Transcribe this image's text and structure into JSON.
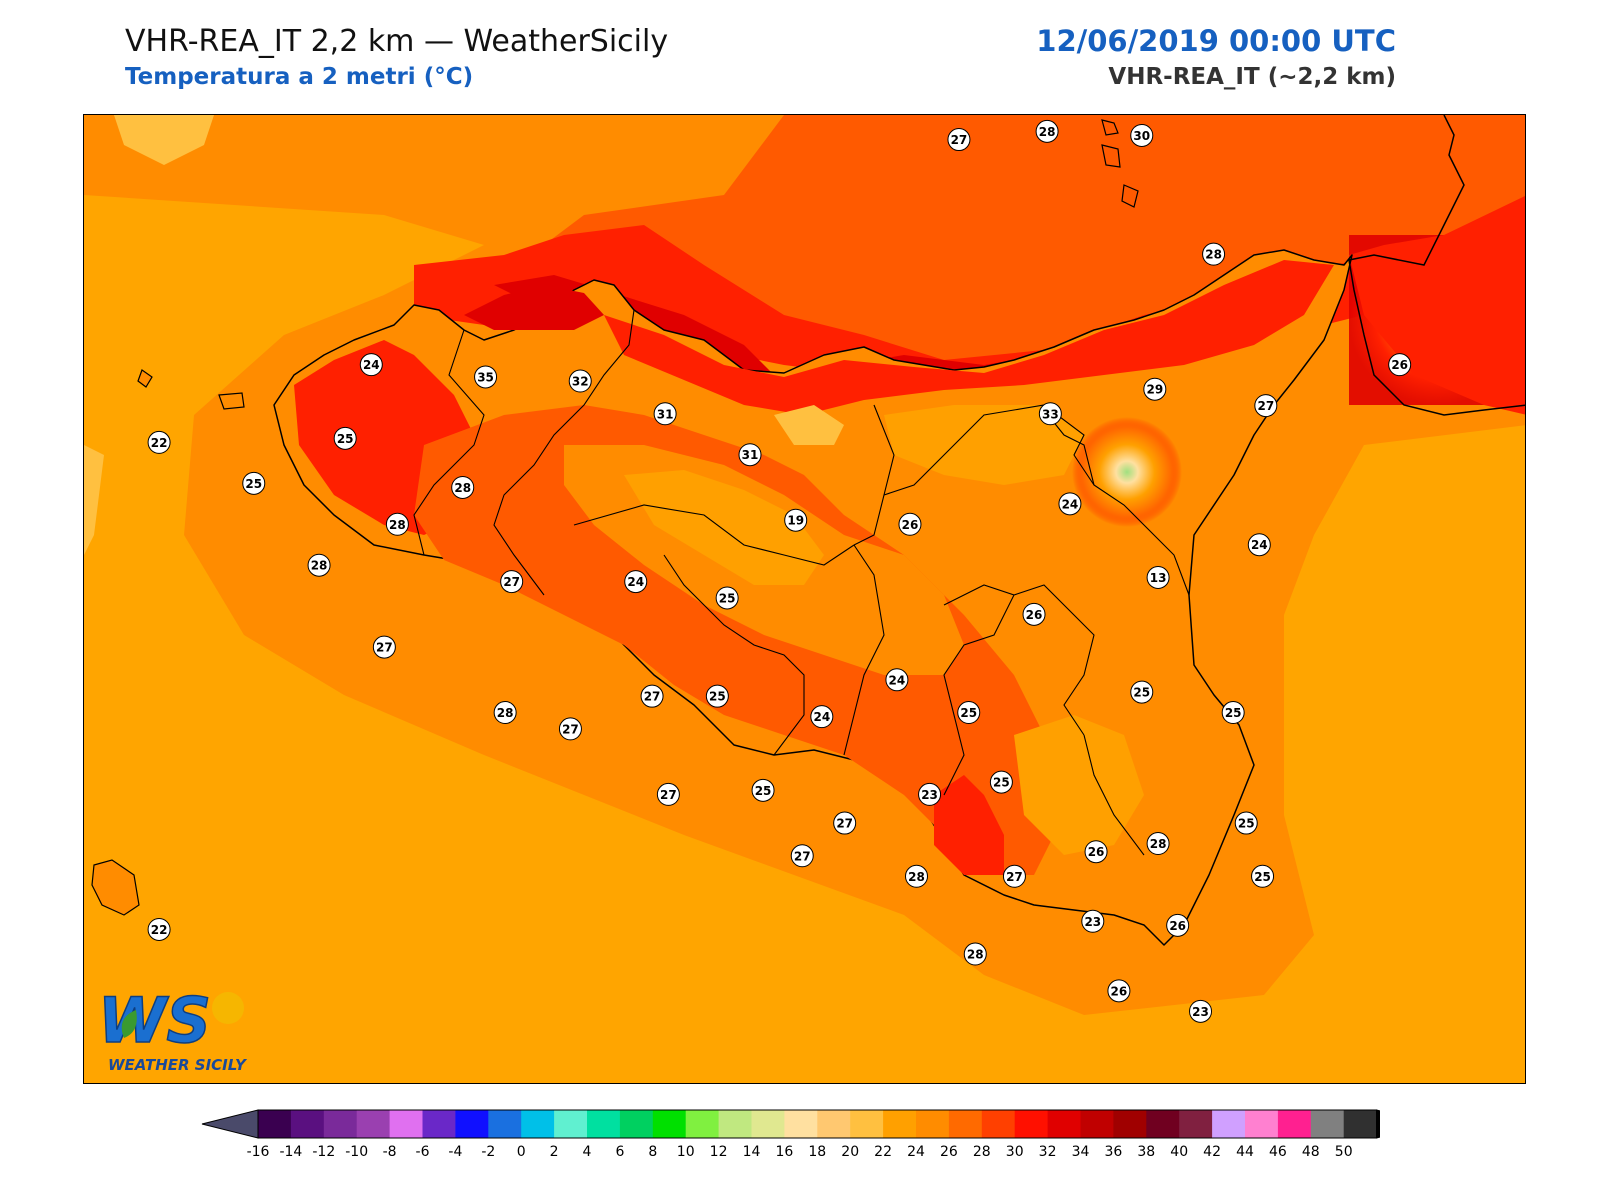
{
  "header": {
    "title": "VHR-REA_IT 2,2 km — WeatherSicily",
    "subtitle": "Temperatura a 2 metri (°C)",
    "datetime": "12/06/2019 00:00 UTC",
    "model": "VHR-REA_IT (~2,2 km)"
  },
  "logo": {
    "text": "WEATHER SICILY",
    "mark": "WS"
  },
  "colors": {
    "sea_base": "#ffa500",
    "land_base": "#ff8a00",
    "hot": "#ff5a00",
    "very_hot": "#ff2000",
    "extreme": "#e00000",
    "cool": "#ffc840",
    "border": "#000000",
    "label_fill": "#ffffff"
  },
  "colorbar": {
    "ticks": [
      "-16",
      "-14",
      "-12",
      "-10",
      "-8",
      "-6",
      "-4",
      "-2",
      "0",
      "2",
      "4",
      "6",
      "8",
      "10",
      "12",
      "14",
      "16",
      "18",
      "20",
      "22",
      "24",
      "26",
      "28",
      "30",
      "32",
      "34",
      "36",
      "38",
      "40",
      "42",
      "44",
      "46",
      "48",
      "50"
    ],
    "colors": [
      "#3a0050",
      "#5a1080",
      "#7a2a9a",
      "#9a40b0",
      "#e070f0",
      "#6a28c8",
      "#1010ff",
      "#1a70e0",
      "#00c0e8",
      "#60f0d0",
      "#00e0a0",
      "#00d060",
      "#00e000",
      "#80f040",
      "#c0e880",
      "#e0e890",
      "#ffe0a0",
      "#ffc870",
      "#ffc040",
      "#ffa000",
      "#ff8c00",
      "#ff6a00",
      "#ff4000",
      "#ff1000",
      "#e00000",
      "#c00000",
      "#a00000",
      "#700020",
      "#802040",
      "#d0a0ff",
      "#ff80d0",
      "#ff2090",
      "#808080",
      "#303030"
    ]
  },
  "stations": [
    {
      "v": "27",
      "lon": 14.38,
      "lat": 38.68
    },
    {
      "v": "28",
      "lon": 14.65,
      "lat": 38.7
    },
    {
      "v": "30",
      "lon": 14.94,
      "lat": 38.69
    },
    {
      "v": "28",
      "lon": 15.16,
      "lat": 38.4
    },
    {
      "v": "24",
      "lon": 12.58,
      "lat": 38.13
    },
    {
      "v": "35",
      "lon": 12.93,
      "lat": 38.1
    },
    {
      "v": "32",
      "lon": 13.22,
      "lat": 38.09
    },
    {
      "v": "31",
      "lon": 13.48,
      "lat": 38.01
    },
    {
      "v": "31",
      "lon": 13.74,
      "lat": 37.91
    },
    {
      "v": "33",
      "lon": 14.66,
      "lat": 38.01
    },
    {
      "v": "29",
      "lon": 14.98,
      "lat": 38.07
    },
    {
      "v": "27",
      "lon": 15.32,
      "lat": 38.03
    },
    {
      "v": "26",
      "lon": 15.73,
      "lat": 38.13
    },
    {
      "v": "22",
      "lon": 11.93,
      "lat": 37.94
    },
    {
      "v": "25",
      "lon": 12.22,
      "lat": 37.84
    },
    {
      "v": "25",
      "lon": 12.5,
      "lat": 37.95
    },
    {
      "v": "28",
      "lon": 12.86,
      "lat": 37.83
    },
    {
      "v": "28",
      "lon": 12.66,
      "lat": 37.74
    },
    {
      "v": "28",
      "lon": 12.42,
      "lat": 37.64
    },
    {
      "v": "27",
      "lon": 12.62,
      "lat": 37.44
    },
    {
      "v": "28",
      "lon": 12.99,
      "lat": 37.28
    },
    {
      "v": "27",
      "lon": 13.01,
      "lat": 37.6
    },
    {
      "v": "24",
      "lon": 13.39,
      "lat": 37.6
    },
    {
      "v": "25",
      "lon": 13.67,
      "lat": 37.56
    },
    {
      "v": "19",
      "lon": 13.88,
      "lat": 37.75
    },
    {
      "v": "26",
      "lon": 14.23,
      "lat": 37.74
    },
    {
      "v": "24",
      "lon": 14.72,
      "lat": 37.79
    },
    {
      "v": "13",
      "lon": 14.99,
      "lat": 37.61
    },
    {
      "v": "24",
      "lon": 15.3,
      "lat": 37.69
    },
    {
      "v": "26",
      "lon": 14.61,
      "lat": 37.52
    },
    {
      "v": "24",
      "lon": 14.19,
      "lat": 37.36
    },
    {
      "v": "25",
      "lon": 14.41,
      "lat": 37.28
    },
    {
      "v": "25",
      "lon": 14.94,
      "lat": 37.33
    },
    {
      "v": "25",
      "lon": 15.22,
      "lat": 37.28
    },
    {
      "v": "27",
      "lon": 13.44,
      "lat": 37.32
    },
    {
      "v": "25",
      "lon": 13.64,
      "lat": 37.32
    },
    {
      "v": "24",
      "lon": 13.96,
      "lat": 37.27
    },
    {
      "v": "27",
      "lon": 13.19,
      "lat": 37.24
    },
    {
      "v": "27",
      "lon": 13.49,
      "lat": 37.08
    },
    {
      "v": "25",
      "lon": 13.78,
      "lat": 37.09
    },
    {
      "v": "27",
      "lon": 14.03,
      "lat": 37.01
    },
    {
      "v": "23",
      "lon": 14.29,
      "lat": 37.08
    },
    {
      "v": "25",
      "lon": 14.51,
      "lat": 37.11
    },
    {
      "v": "25",
      "lon": 15.26,
      "lat": 37.01
    },
    {
      "v": "26",
      "lon": 14.8,
      "lat": 36.94
    },
    {
      "v": "28",
      "lon": 14.99,
      "lat": 36.96
    },
    {
      "v": "27",
      "lon": 14.55,
      "lat": 36.88
    },
    {
      "v": "28",
      "lon": 14.25,
      "lat": 36.88
    },
    {
      "v": "27",
      "lon": 13.9,
      "lat": 36.93
    },
    {
      "v": "25",
      "lon": 15.31,
      "lat": 36.88
    },
    {
      "v": "23",
      "lon": 14.79,
      "lat": 36.77
    },
    {
      "v": "26",
      "lon": 15.05,
      "lat": 36.76
    },
    {
      "v": "28",
      "lon": 14.43,
      "lat": 36.69
    },
    {
      "v": "26",
      "lon": 14.87,
      "lat": 36.6
    },
    {
      "v": "23",
      "lon": 15.12,
      "lat": 36.55
    },
    {
      "v": "22",
      "lon": 11.93,
      "lat": 36.75
    }
  ]
}
